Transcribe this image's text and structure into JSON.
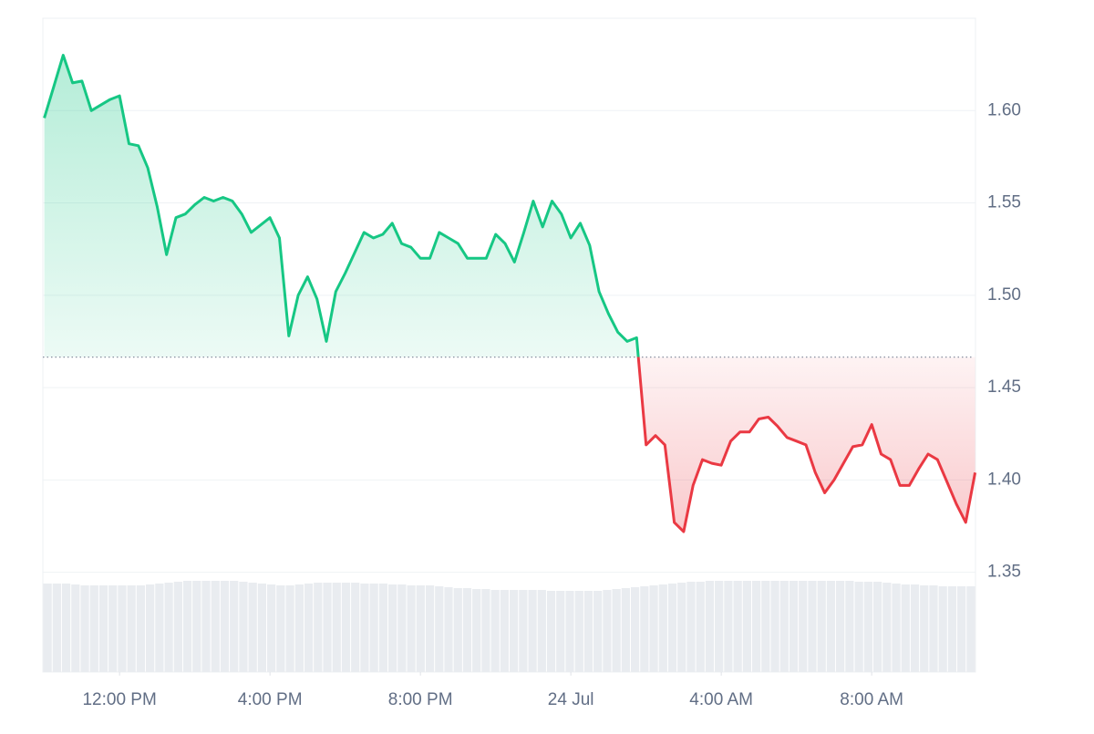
{
  "chart_data": {
    "type": "line",
    "x": [
      10,
      10.25,
      10.5,
      10.75,
      11,
      11.25,
      11.5,
      11.75,
      12,
      12.25,
      12.5,
      12.75,
      13,
      13.25,
      13.5,
      13.75,
      14,
      14.25,
      14.5,
      14.75,
      15,
      15.25,
      15.5,
      15.75,
      16,
      16.25,
      16.5,
      16.75,
      17,
      17.25,
      17.5,
      17.75,
      18,
      18.25,
      18.5,
      18.75,
      19,
      19.25,
      19.5,
      19.75,
      20,
      20.25,
      20.5,
      20.75,
      21,
      21.25,
      21.5,
      21.75,
      22,
      22.25,
      22.5,
      22.75,
      23,
      23.25,
      23.5,
      23.75,
      24,
      24.25,
      24.5,
      24.75,
      25,
      25.25,
      25.5,
      25.75,
      26,
      26.25,
      26.5,
      26.75,
      27,
      27.25,
      27.5,
      27.75,
      28,
      28.25,
      28.5,
      28.75,
      29,
      29.25,
      29.5,
      29.75,
      30,
      30.25,
      30.5,
      30.75,
      31,
      31.25,
      31.5,
      31.75,
      32,
      32.25,
      32.5,
      32.75,
      33,
      33.25,
      33.5,
      33.75,
      34,
      34.25,
      34.5,
      34.75
    ],
    "values": [
      1.596,
      1.613,
      1.63,
      1.615,
      1.616,
      1.6,
      1.603,
      1.606,
      1.608,
      1.582,
      1.581,
      1.569,
      1.548,
      1.522,
      1.542,
      1.544,
      1.549,
      1.553,
      1.551,
      1.553,
      1.551,
      1.544,
      1.534,
      1.538,
      1.542,
      1.531,
      1.478,
      1.5,
      1.51,
      1.498,
      1.475,
      1.502,
      1.512,
      1.523,
      1.534,
      1.531,
      1.533,
      1.539,
      1.528,
      1.526,
      1.52,
      1.52,
      1.534,
      1.531,
      1.528,
      1.52,
      1.52,
      1.52,
      1.533,
      1.528,
      1.518,
      1.534,
      1.551,
      1.537,
      1.551,
      1.544,
      1.531,
      1.539,
      1.527,
      1.502,
      1.49,
      1.48,
      1.475,
      1.477,
      1.419,
      1.424,
      1.419,
      1.377,
      1.372,
      1.397,
      1.411,
      1.409,
      1.408,
      1.421,
      1.426,
      1.426,
      1.433,
      1.434,
      1.429,
      1.423,
      1.421,
      1.419,
      1.404,
      1.393,
      1.4,
      1.409,
      1.418,
      1.419,
      1.43,
      1.414,
      1.411,
      1.397,
      1.397,
      1.406,
      1.414,
      1.411,
      1.399,
      1.387,
      1.377,
      1.404
    ],
    "colors": {
      "up": "#16c784",
      "down": "#ea3943"
    },
    "baseline": 1.4665,
    "xlim": [
      9.96,
      34.76
    ],
    "xticks": [
      {
        "value": 12,
        "label": "12:00 PM"
      },
      {
        "value": 16,
        "label": "4:00 PM"
      },
      {
        "value": 20,
        "label": "8:00 PM"
      },
      {
        "value": 24,
        "label": "24 Jul"
      },
      {
        "value": 28,
        "label": "4:00 AM"
      },
      {
        "value": 32,
        "label": "8:00 AM"
      }
    ],
    "ylim": [
      1.296,
      1.65
    ],
    "yticks": [
      1.35,
      {
        "value": 1.4,
        "label": "1.40"
      },
      1.45,
      {
        "value": 1.5,
        "label": "1.50"
      },
      1.55,
      {
        "value": 1.6,
        "label": "1.60"
      }
    ],
    "grid": true,
    "volume": {
      "color": "#e9ecf0",
      "ylim": [
        0,
        100
      ],
      "values": [
        97,
        97,
        97,
        96,
        95,
        95,
        95,
        95,
        95,
        95,
        95,
        96,
        97,
        98,
        99,
        100,
        100,
        100,
        100,
        100,
        100,
        99,
        98,
        97,
        96,
        95,
        95,
        96,
        97,
        98,
        98,
        98,
        98,
        98,
        97,
        97,
        97,
        96,
        96,
        95,
        95,
        95,
        94,
        93,
        92,
        92,
        91,
        91,
        90,
        90,
        90,
        90,
        90,
        90,
        89,
        89,
        89,
        89,
        89,
        89,
        90,
        91,
        92,
        93,
        94,
        95,
        96,
        97,
        98,
        99,
        99,
        100,
        100,
        100,
        100,
        100,
        100,
        100,
        100,
        100,
        100,
        100,
        100,
        100,
        100,
        100,
        100,
        99,
        99,
        99,
        98,
        97,
        96,
        96,
        95,
        95,
        94,
        94,
        94,
        94
      ]
    }
  }
}
